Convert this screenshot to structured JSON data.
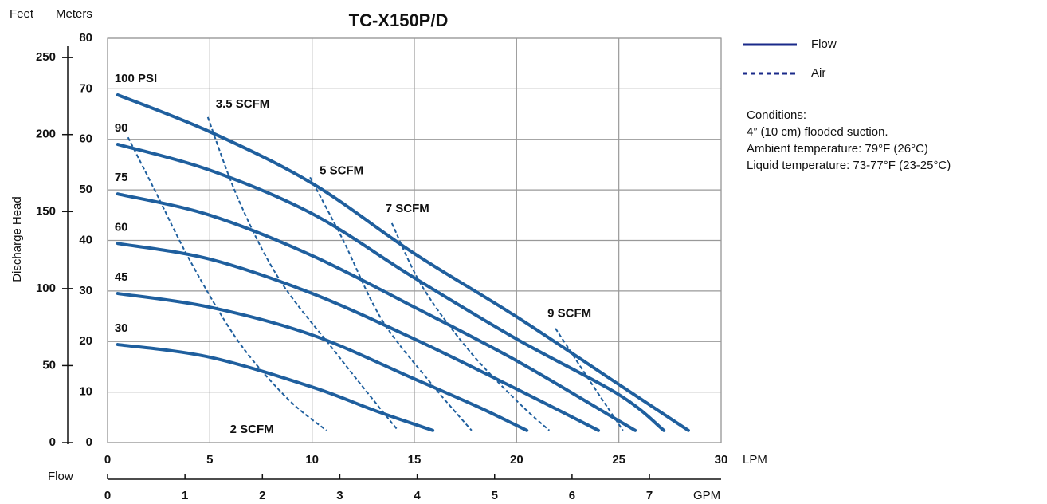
{
  "chart_data": {
    "type": "line",
    "title": "TC-X150P/D",
    "y_label": "Discharge Head",
    "y_unit_label": "Meters",
    "y2_unit_label": "Feet",
    "x_axis_title": "Flow",
    "x_unit_label": "LPM",
    "x2_unit_label": "GPM",
    "xlim": [
      0,
      30
    ],
    "xticks": [
      0,
      5,
      10,
      15,
      20,
      25,
      30
    ],
    "x2lim": [
      0,
      7.926
    ],
    "x2ticks": [
      0,
      1,
      2,
      3,
      4,
      5,
      6,
      7
    ],
    "ylim": [
      0,
      80
    ],
    "yticks": [
      0,
      10,
      20,
      30,
      40,
      50,
      60,
      70,
      80
    ],
    "y2lim": [
      0,
      262.5
    ],
    "y2ticks": [
      0,
      50,
      100,
      150,
      200,
      250
    ],
    "grid": true,
    "legend": [
      {
        "label": "Flow",
        "line_style": "solid",
        "color": "#1a2a8a"
      },
      {
        "label": "Air",
        "line_style": "dashed",
        "color": "#1a2a8a"
      }
    ],
    "notes": [
      "Conditions:",
      "4” (10 cm) flooded suction.",
      "Ambient temperature: 79°F (26°C)",
      "Liquid temperature: 73-77°F (23-25°C)"
    ],
    "series": [
      {
        "name": "100 PSI",
        "line_style": "solid",
        "color": "#1f5f9e",
        "x": [
          0.5,
          5,
          10,
          15,
          20,
          25,
          28.4
        ],
        "values": [
          68.8,
          61.5,
          51.3,
          37.4,
          24.9,
          11.5,
          2.4
        ]
      },
      {
        "name": "90",
        "line_style": "solid",
        "color": "#1f5f9e",
        "x": [
          0.5,
          5,
          10,
          15,
          20,
          25,
          27.2
        ],
        "values": [
          59.0,
          53.9,
          45.3,
          32.6,
          20.5,
          9.5,
          2.4
        ]
      },
      {
        "name": "75",
        "line_style": "solid",
        "color": "#1f5f9e",
        "x": [
          0.5,
          5,
          10,
          15,
          20,
          25,
          25.8
        ],
        "values": [
          49.2,
          45.0,
          37.0,
          26.8,
          16.2,
          4.3,
          2.4
        ]
      },
      {
        "name": "60",
        "line_style": "solid",
        "color": "#1f5f9e",
        "x": [
          0.5,
          5,
          10,
          15,
          20,
          24.0
        ],
        "values": [
          39.4,
          36.3,
          29.5,
          20.5,
          10.6,
          2.4
        ]
      },
      {
        "name": "45",
        "line_style": "solid",
        "color": "#1f5f9e",
        "x": [
          0.5,
          5,
          10,
          15,
          18.1,
          20.5
        ],
        "values": [
          29.5,
          26.8,
          21.3,
          12.6,
          7.1,
          2.4
        ]
      },
      {
        "name": "30",
        "line_style": "solid",
        "color": "#1f5f9e",
        "x": [
          0.5,
          5,
          10,
          13.1,
          15.9
        ],
        "values": [
          19.4,
          16.9,
          11.0,
          6.3,
          2.4
        ]
      },
      {
        "name": "2 SCFM",
        "line_style": "dashed",
        "color": "#1f5f9e",
        "x": [
          1.0,
          2.3,
          4.1,
          6.4,
          8.8,
          10.7
        ],
        "values": [
          60.4,
          50.0,
          35.5,
          20.0,
          8.7,
          2.4
        ]
      },
      {
        "name": "3.5 SCFM",
        "line_style": "dashed",
        "color": "#1f5f9e",
        "x": [
          4.9,
          6.4,
          8.4,
          11.1,
          13.1,
          14.2
        ],
        "values": [
          64.4,
          48.1,
          32.3,
          18.1,
          7.9,
          2.4
        ]
      },
      {
        "name": "5 SCFM",
        "line_style": "dashed",
        "color": "#1f5f9e",
        "x": [
          9.9,
          11.5,
          13.4,
          15.8,
          17.8
        ],
        "values": [
          52.5,
          40.2,
          24.4,
          11.8,
          2.4
        ]
      },
      {
        "name": "7 SCFM",
        "line_style": "dashed",
        "color": "#1f5f9e",
        "x": [
          13.9,
          15.4,
          17.7,
          20.1,
          21.6
        ],
        "values": [
          43.4,
          30.8,
          18.1,
          7.9,
          2.4
        ]
      },
      {
        "name": "9 SCFM",
        "line_style": "dashed",
        "color": "#1f5f9e",
        "x": [
          21.9,
          23.6,
          25.2
        ],
        "values": [
          22.6,
          12.1,
          2.4
        ]
      }
    ]
  }
}
